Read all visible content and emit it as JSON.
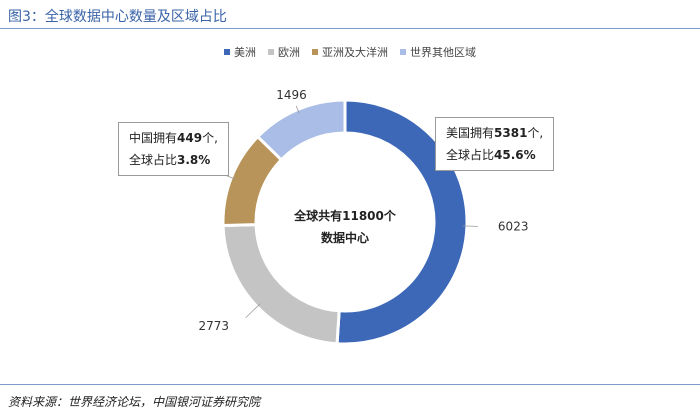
{
  "title": "图3：全球数据中心数量及区域占比",
  "source": "资料来源：世界经济论坛，中国银河证券研究院",
  "center_text": {
    "line1": "全球共有11800个",
    "line2": "数据中心"
  },
  "callouts": {
    "us": {
      "prefix": "美国拥有",
      "count": "5381",
      "suffix": "个,",
      "share_prefix": "全球占比",
      "share": "45.6%"
    },
    "cn": {
      "prefix": "中国拥有",
      "count": "449",
      "suffix": "个,",
      "share_prefix": "全球占比",
      "share": "3.8%"
    }
  },
  "chart_data": {
    "type": "pie",
    "donut": true,
    "legend_position": "top",
    "series": [
      {
        "name": "美洲",
        "value": 6023,
        "color": "#3d68b8"
      },
      {
        "name": "欧洲",
        "value": 2773,
        "color": "#c4c4c4"
      },
      {
        "name": "亚洲及大洋洲",
        "value": 1508,
        "color": "#b8935a"
      },
      {
        "name": "世界其他区域",
        "value": 1496,
        "color": "#a9bde6"
      }
    ],
    "start_angle_deg": 0,
    "direction": "clockwise"
  }
}
